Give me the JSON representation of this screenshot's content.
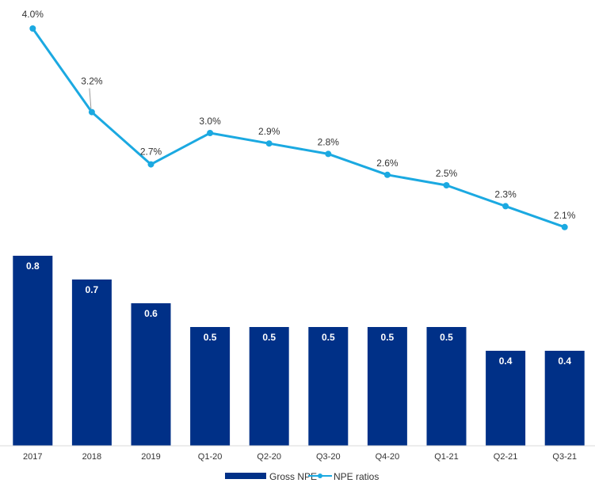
{
  "chart_data": {
    "type": "bar",
    "categories": [
      "2017",
      "2018",
      "2019",
      "Q1-20",
      "Q2-20",
      "Q3-20",
      "Q4-20",
      "Q1-21",
      "Q2-21",
      "Q3-21"
    ],
    "series": [
      {
        "name": "Gross NPE",
        "type": "bar",
        "values": [
          0.8,
          0.7,
          0.6,
          0.5,
          0.5,
          0.5,
          0.5,
          0.5,
          0.4,
          0.4
        ],
        "labels": [
          "0.8",
          "0.7",
          "0.6",
          "0.5",
          "0.5",
          "0.5",
          "0.5",
          "0.5",
          "0.4",
          "0.4"
        ],
        "color": "#003087"
      },
      {
        "name": "NPE ratios",
        "type": "line",
        "values": [
          4.0,
          3.2,
          2.7,
          3.0,
          2.9,
          2.8,
          2.6,
          2.5,
          2.3,
          2.1
        ],
        "labels": [
          "4.0%",
          "3.2%",
          "2.7%",
          "3.0%",
          "2.9%",
          "2.8%",
          "2.6%",
          "2.5%",
          "2.3%",
          "2.1%"
        ],
        "color": "#1BA9E1"
      }
    ],
    "legend": [
      "Gross NPE",
      "NPE ratios"
    ],
    "title": "",
    "xlabel": "",
    "ylabel": ""
  }
}
